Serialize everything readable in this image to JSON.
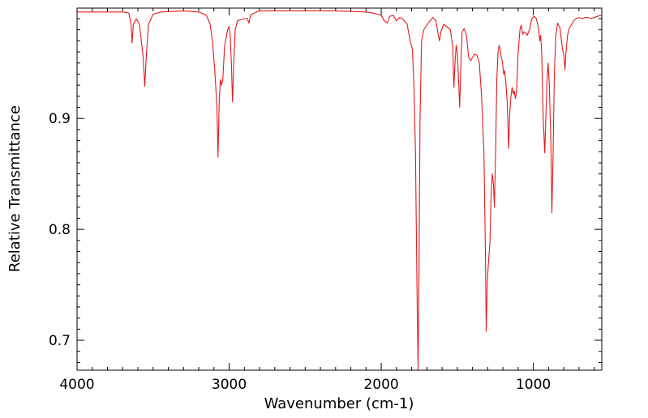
{
  "chart_data": {
    "type": "line",
    "title": "",
    "xlabel": "Wavenumber (cm-1)",
    "ylabel": "Relative Transmittance",
    "xlim": [
      4000,
      550
    ],
    "ylim": [
      0.673,
      0.9995
    ],
    "x_reversed": true,
    "grid": false,
    "legend": "none",
    "x_ticks": [
      4000,
      3000,
      2000,
      1000
    ],
    "x_tick_labels": [
      "4000",
      "3000",
      "2000",
      "1000"
    ],
    "y_ticks": [
      0.7,
      0.8,
      0.9
    ],
    "y_tick_labels": [
      "0.7",
      "0.8",
      "0.9"
    ],
    "line_color": "#e41a1c",
    "series": [
      {
        "color": "#e41a1c",
        "points": [
          [
            4000,
            0.996
          ],
          [
            3900,
            0.996
          ],
          [
            3800,
            0.996
          ],
          [
            3700,
            0.996
          ],
          [
            3660,
            0.995
          ],
          [
            3645,
            0.985
          ],
          [
            3638,
            0.968
          ],
          [
            3630,
            0.985
          ],
          [
            3610,
            0.99
          ],
          [
            3590,
            0.985
          ],
          [
            3565,
            0.955
          ],
          [
            3555,
            0.929
          ],
          [
            3545,
            0.955
          ],
          [
            3530,
            0.985
          ],
          [
            3500,
            0.994
          ],
          [
            3450,
            0.996
          ],
          [
            3300,
            0.997
          ],
          [
            3200,
            0.996
          ],
          [
            3150,
            0.993
          ],
          [
            3125,
            0.985
          ],
          [
            3110,
            0.97
          ],
          [
            3095,
            0.945
          ],
          [
            3080,
            0.91
          ],
          [
            3073,
            0.865
          ],
          [
            3065,
            0.915
          ],
          [
            3058,
            0.935
          ],
          [
            3050,
            0.93
          ],
          [
            3042,
            0.935
          ],
          [
            3030,
            0.965
          ],
          [
            3010,
            0.98
          ],
          [
            3000,
            0.983
          ],
          [
            2993,
            0.975
          ],
          [
            2985,
            0.95
          ],
          [
            2978,
            0.915
          ],
          [
            2970,
            0.95
          ],
          [
            2960,
            0.98
          ],
          [
            2945,
            0.988
          ],
          [
            2925,
            0.989
          ],
          [
            2900,
            0.99
          ],
          [
            2880,
            0.99
          ],
          [
            2870,
            0.986
          ],
          [
            2860,
            0.993
          ],
          [
            2850,
            0.994
          ],
          [
            2800,
            0.997
          ],
          [
            2700,
            0.997
          ],
          [
            2500,
            0.997
          ],
          [
            2300,
            0.997
          ],
          [
            2100,
            0.996
          ],
          [
            2050,
            0.995
          ],
          [
            2000,
            0.993
          ],
          [
            1980,
            0.988
          ],
          [
            1960,
            0.986
          ],
          [
            1945,
            0.992
          ],
          [
            1920,
            0.993
          ],
          [
            1900,
            0.988
          ],
          [
            1880,
            0.991
          ],
          [
            1860,
            0.99
          ],
          [
            1830,
            0.985
          ],
          [
            1810,
            0.97
          ],
          [
            1795,
            0.962
          ],
          [
            1785,
            0.93
          ],
          [
            1775,
            0.87
          ],
          [
            1765,
            0.75
          ],
          [
            1758,
            0.673
          ],
          [
            1752,
            0.76
          ],
          [
            1745,
            0.9
          ],
          [
            1735,
            0.97
          ],
          [
            1720,
            0.98
          ],
          [
            1700,
            0.984
          ],
          [
            1680,
            0.988
          ],
          [
            1660,
            0.991
          ],
          [
            1640,
            0.988
          ],
          [
            1625,
            0.975
          ],
          [
            1617,
            0.97
          ],
          [
            1608,
            0.978
          ],
          [
            1590,
            0.985
          ],
          [
            1570,
            0.983
          ],
          [
            1545,
            0.98
          ],
          [
            1530,
            0.965
          ],
          [
            1522,
            0.928
          ],
          [
            1515,
            0.95
          ],
          [
            1507,
            0.966
          ],
          [
            1500,
            0.96
          ],
          [
            1490,
            0.93
          ],
          [
            1484,
            0.91
          ],
          [
            1476,
            0.95
          ],
          [
            1468,
            0.978
          ],
          [
            1455,
            0.981
          ],
          [
            1440,
            0.975
          ],
          [
            1425,
            0.955
          ],
          [
            1412,
            0.952
          ],
          [
            1400,
            0.955
          ],
          [
            1385,
            0.958
          ],
          [
            1370,
            0.957
          ],
          [
            1355,
            0.95
          ],
          [
            1340,
            0.92
          ],
          [
            1325,
            0.87
          ],
          [
            1315,
            0.78
          ],
          [
            1310,
            0.708
          ],
          [
            1302,
            0.755
          ],
          [
            1295,
            0.77
          ],
          [
            1285,
            0.79
          ],
          [
            1278,
            0.83
          ],
          [
            1270,
            0.85
          ],
          [
            1262,
            0.84
          ],
          [
            1256,
            0.82
          ],
          [
            1248,
            0.87
          ],
          [
            1240,
            0.935
          ],
          [
            1232,
            0.96
          ],
          [
            1225,
            0.966
          ],
          [
            1218,
            0.962
          ],
          [
            1210,
            0.955
          ],
          [
            1202,
            0.95
          ],
          [
            1195,
            0.94
          ],
          [
            1188,
            0.943
          ],
          [
            1180,
            0.93
          ],
          [
            1172,
            0.915
          ],
          [
            1162,
            0.873
          ],
          [
            1155,
            0.905
          ],
          [
            1147,
            0.92
          ],
          [
            1140,
            0.928
          ],
          [
            1132,
            0.922
          ],
          [
            1126,
            0.925
          ],
          [
            1118,
            0.918
          ],
          [
            1110,
            0.925
          ],
          [
            1100,
            0.96
          ],
          [
            1088,
            0.98
          ],
          [
            1080,
            0.984
          ],
          [
            1070,
            0.976
          ],
          [
            1062,
            0.978
          ],
          [
            1050,
            0.977
          ],
          [
            1040,
            0.975
          ],
          [
            1025,
            0.98
          ],
          [
            1010,
            0.99
          ],
          [
            995,
            0.992
          ],
          [
            980,
            0.99
          ],
          [
            965,
            0.98
          ],
          [
            958,
            0.97
          ],
          [
            952,
            0.975
          ],
          [
            945,
            0.96
          ],
          [
            935,
            0.9
          ],
          [
            925,
            0.869
          ],
          [
            918,
            0.9
          ],
          [
            910,
            0.935
          ],
          [
            903,
            0.95
          ],
          [
            895,
            0.93
          ],
          [
            885,
            0.88
          ],
          [
            878,
            0.815
          ],
          [
            870,
            0.87
          ],
          [
            862,
            0.94
          ],
          [
            852,
            0.975
          ],
          [
            840,
            0.986
          ],
          [
            825,
            0.982
          ],
          [
            815,
            0.97
          ],
          [
            808,
            0.962
          ],
          [
            800,
            0.958
          ],
          [
            792,
            0.944
          ],
          [
            785,
            0.96
          ],
          [
            775,
            0.975
          ],
          [
            762,
            0.982
          ],
          [
            748,
            0.985
          ],
          [
            735,
            0.988
          ],
          [
            720,
            0.99
          ],
          [
            700,
            0.991
          ],
          [
            680,
            0.99
          ],
          [
            660,
            0.991
          ],
          [
            640,
            0.991
          ],
          [
            620,
            0.99
          ],
          [
            600,
            0.991
          ],
          [
            580,
            0.992
          ],
          [
            560,
            0.993
          ],
          [
            550,
            0.993
          ]
        ]
      }
    ]
  }
}
